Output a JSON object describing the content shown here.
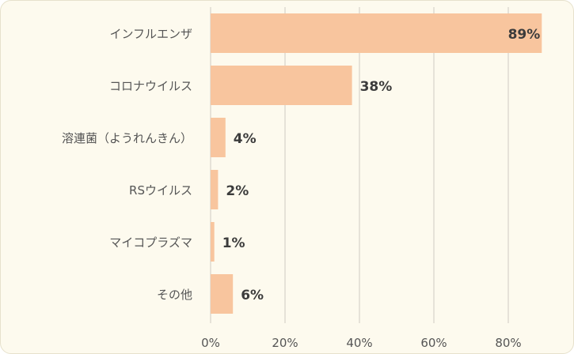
{
  "chart_data": {
    "type": "bar",
    "orientation": "horizontal",
    "categories": [
      "インフルエンザ",
      "コロナウイルス",
      "溶連菌（ようれんきん）",
      "RSウイルス",
      "マイコプラズマ",
      "その他"
    ],
    "values": [
      89,
      38,
      4,
      2,
      1,
      6
    ],
    "data_labels": [
      "89%",
      "38%",
      "4%",
      "2%",
      "1%",
      "6%"
    ],
    "xlim": [
      0,
      90
    ],
    "x_ticks": [
      0,
      20,
      40,
      60,
      80
    ],
    "x_tick_labels": [
      "0%",
      "20%",
      "40%",
      "60%",
      "80%"
    ],
    "grid": true,
    "legend": "none",
    "colors": {
      "bar": "#f8c59e",
      "grid": "#d9d6cc",
      "background": "#fdfaee",
      "text": "#555555",
      "label": "#3c3c3c"
    }
  }
}
